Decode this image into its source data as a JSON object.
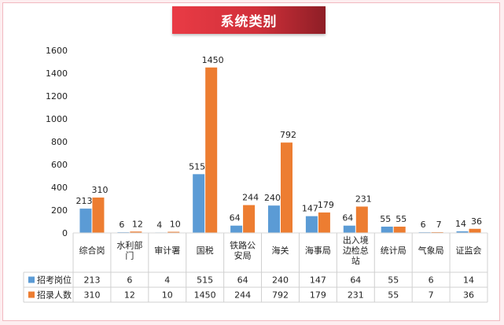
{
  "chart_data": {
    "type": "bar",
    "title": "系统类别",
    "categories": [
      [
        "综合岗"
      ],
      [
        "水利部",
        "门"
      ],
      [
        "审计署"
      ],
      [
        "国税"
      ],
      [
        "铁路公",
        "安局"
      ],
      [
        "海关"
      ],
      [
        "海事局"
      ],
      [
        "出入境",
        "边检总",
        "站"
      ],
      [
        "统计局"
      ],
      [
        "气象局"
      ],
      [
        "证监会"
      ]
    ],
    "series": [
      {
        "name": "招考岗位",
        "color": "#5b9bd5",
        "values": [
          213,
          6,
          4,
          515,
          64,
          240,
          147,
          64,
          55,
          6,
          14
        ]
      },
      {
        "name": "招录人数",
        "color": "#ed7d31",
        "values": [
          310,
          12,
          10,
          1450,
          244,
          792,
          179,
          231,
          55,
          7,
          36
        ]
      }
    ],
    "yticks": [
      0,
      200,
      400,
      600,
      800,
      1000,
      1200,
      1400,
      1600
    ],
    "ylim": [
      0,
      1600
    ],
    "data_labels": true,
    "data_table": true,
    "grid": false
  }
}
